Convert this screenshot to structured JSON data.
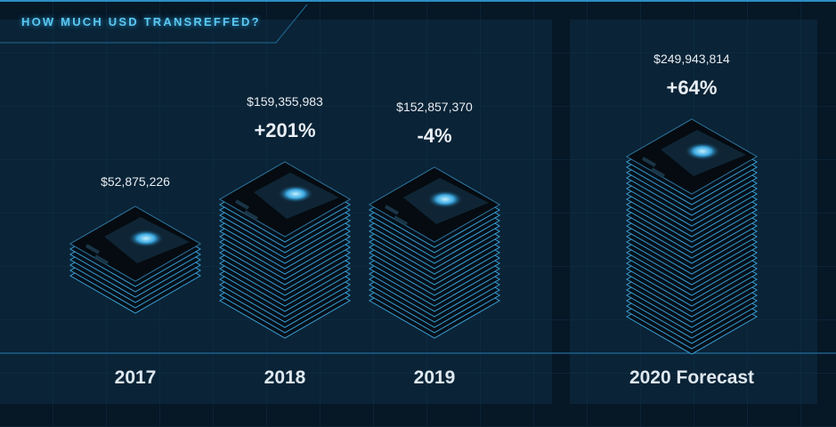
{
  "title": "HOW MUCH USD TRANSREFFED?",
  "colors": {
    "background": "#071a2a",
    "accent": "#5cc8f2",
    "panel": "#0a2336"
  },
  "chart_data": {
    "type": "bar",
    "title": "HOW MUCH USD TRANSREFFED?",
    "categories": [
      "2017",
      "2018",
      "2019",
      "2020 Forecast"
    ],
    "values": [
      52875226,
      159355983,
      152857370,
      249943814
    ],
    "value_labels": [
      "$52,875,226",
      "$159,355,983",
      "$152,857,370",
      "$249,943,814"
    ],
    "change_labels": [
      "",
      "+201%",
      "-4%",
      "+64%"
    ],
    "mark": "stacked isometric cards"
  }
}
